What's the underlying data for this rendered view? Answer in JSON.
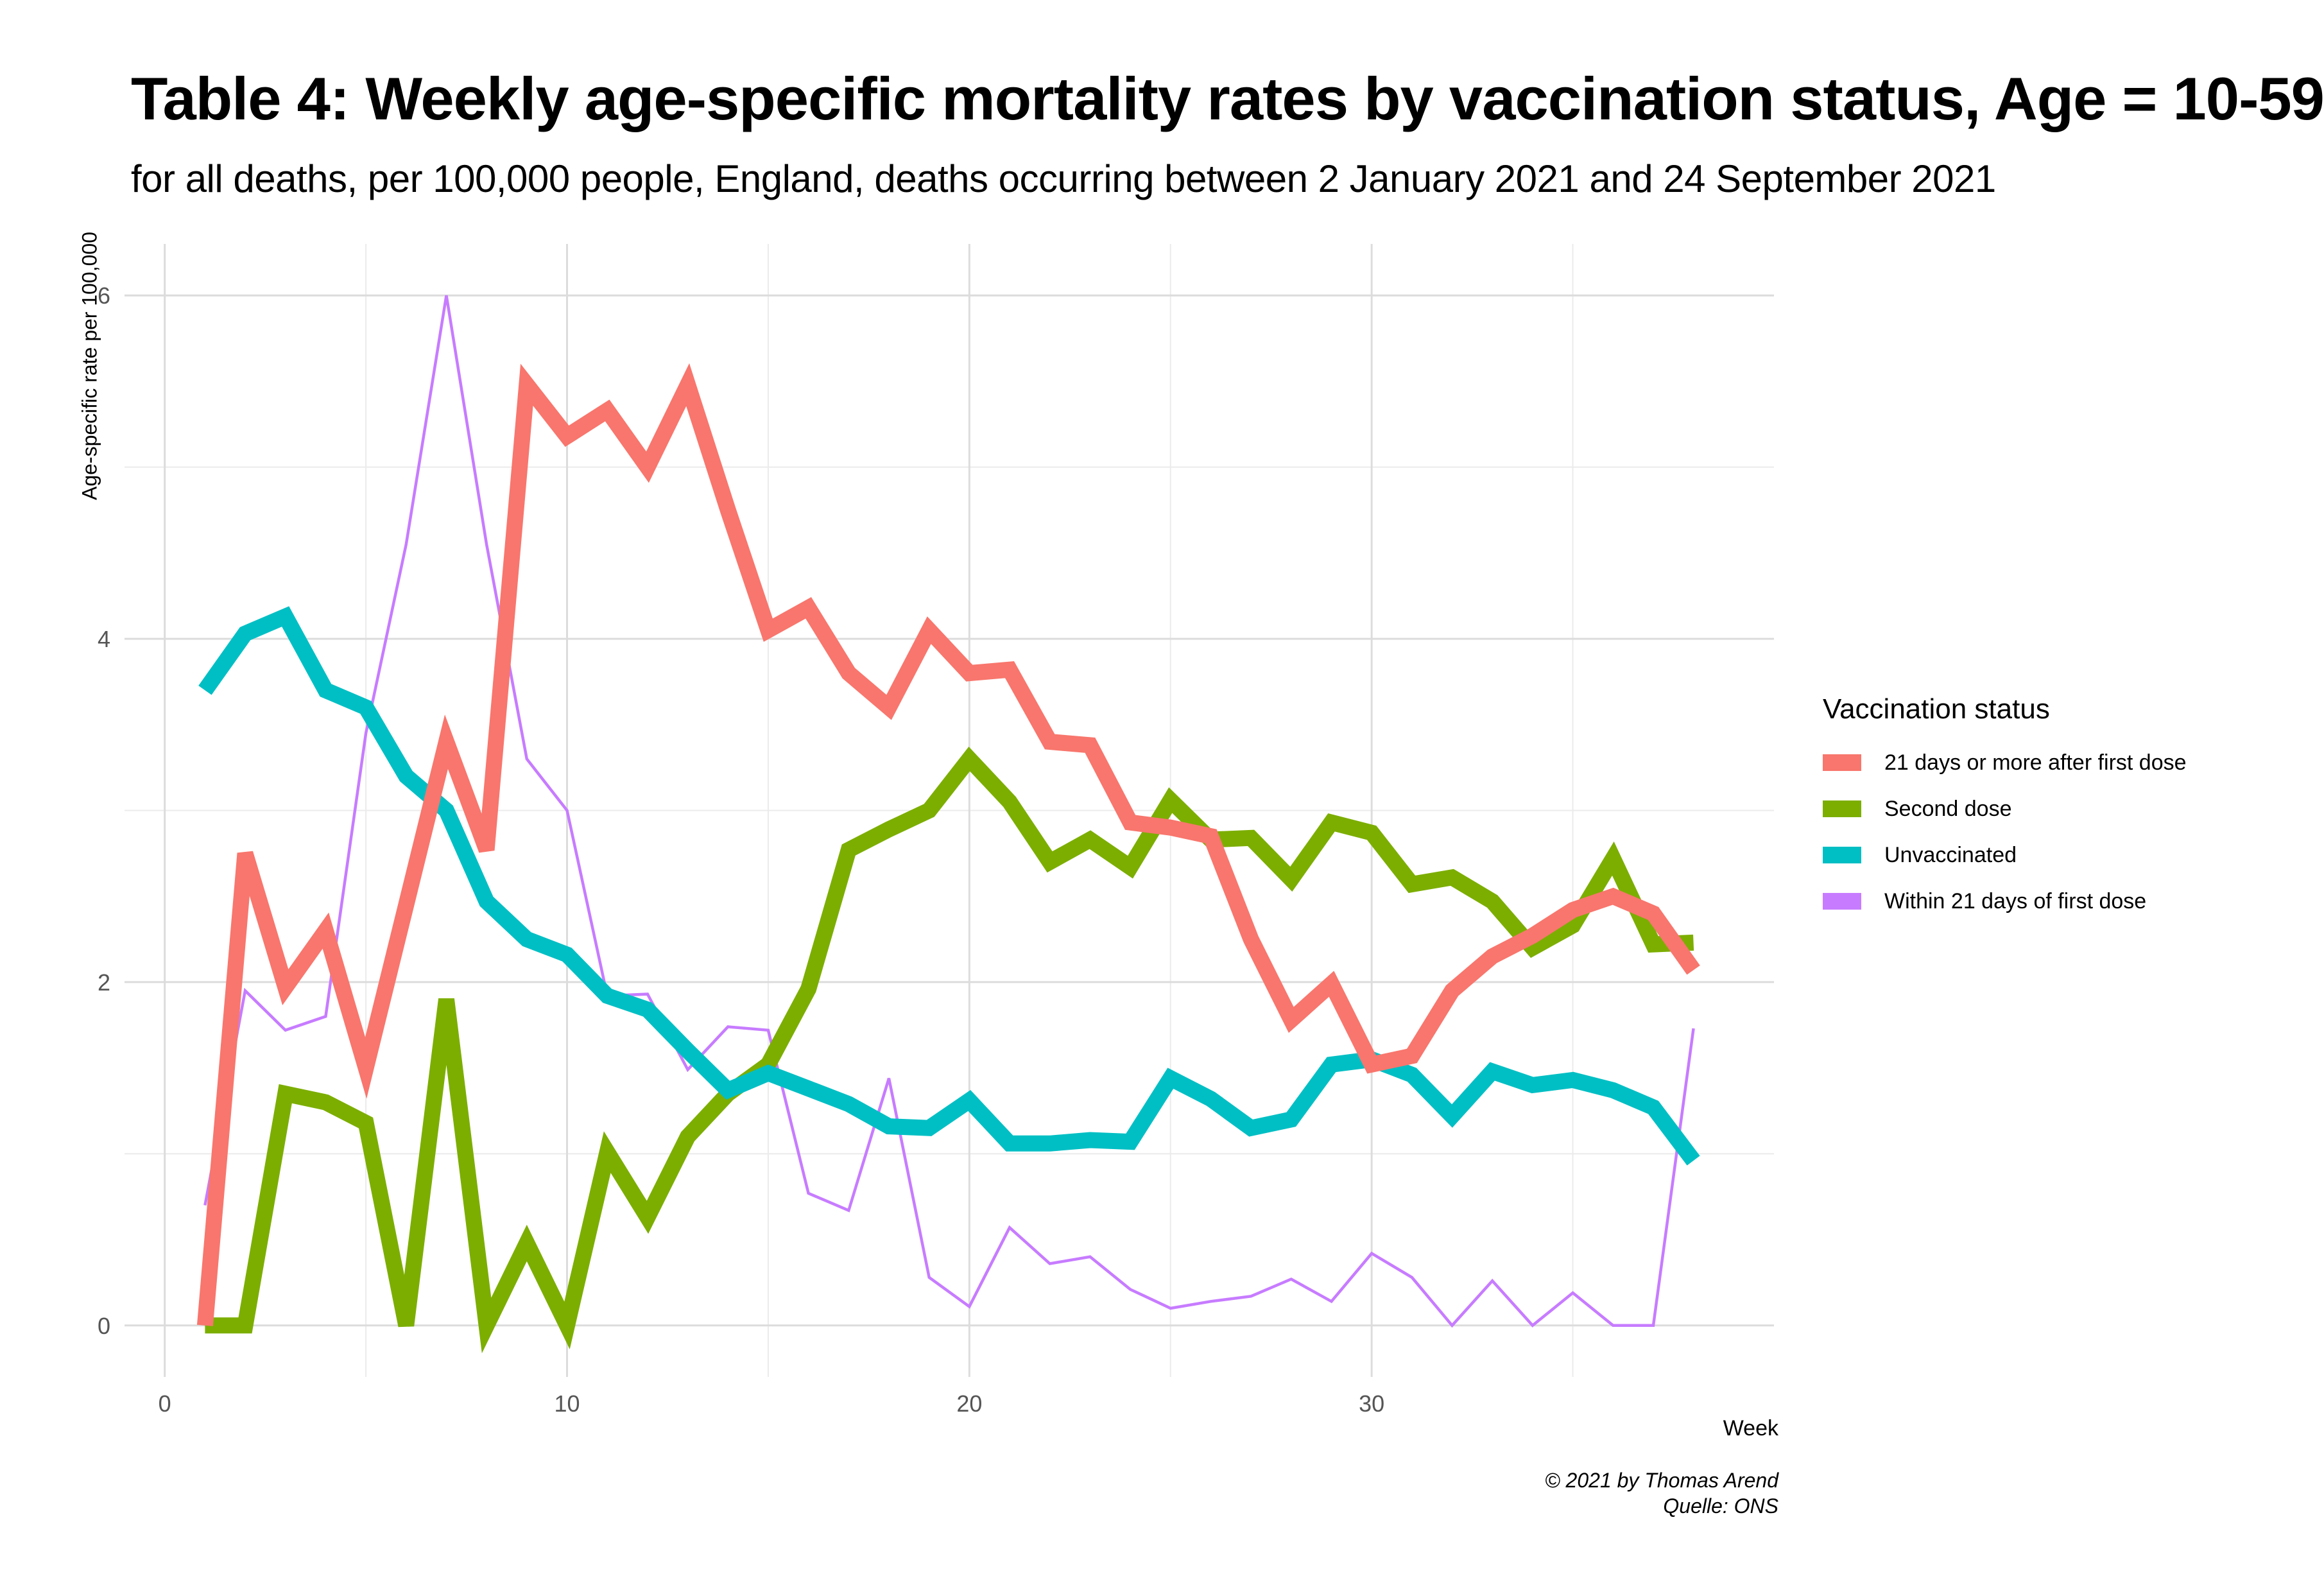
{
  "chart_data": {
    "type": "line",
    "title": "Table 4: Weekly age-specific mortality rates by vaccination status, Age = 10-59",
    "subtitle": "for all deaths, per 100,000 people, England, deaths occurring between 2 January 2021 and 24 September 2021",
    "xlabel": "Week",
    "ylabel": "Age-specific rate per 100,000",
    "xlim": [
      -1,
      40
    ],
    "ylim": [
      -0.3,
      6.3
    ],
    "x_ticks": [
      0,
      10,
      20,
      30
    ],
    "x_minor_ticks": [
      5,
      15,
      25,
      35
    ],
    "y_ticks": [
      0,
      2,
      4,
      6
    ],
    "y_minor_ticks": [
      1,
      3,
      5
    ],
    "grid": true,
    "legend_title": "Vaccination status",
    "legend_position": "right",
    "x": [
      1,
      2,
      3,
      4,
      5,
      6,
      7,
      8,
      9,
      10,
      11,
      12,
      13,
      14,
      15,
      16,
      17,
      18,
      19,
      20,
      21,
      22,
      23,
      24,
      25,
      26,
      27,
      28,
      29,
      30,
      31,
      32,
      33,
      34,
      35,
      36,
      37,
      38
    ],
    "series": [
      {
        "name": "21 days or more after first dose",
        "color": "#F8766D",
        "width": "thick",
        "values": [
          0,
          2.75,
          1.97,
          2.3,
          1.5,
          2.45,
          3.4,
          2.77,
          5.48,
          5.18,
          5.33,
          5.0,
          5.48,
          4.75,
          4.05,
          4.18,
          3.8,
          3.6,
          4.05,
          3.8,
          3.82,
          3.4,
          3.38,
          2.93,
          2.9,
          2.85,
          2.25,
          1.78,
          1.99,
          1.52,
          1.57,
          1.95,
          2.15,
          2.27,
          2.42,
          2.5,
          2.4,
          2.07
        ]
      },
      {
        "name": "Second dose",
        "color": "#7CAE00",
        "width": "thick",
        "values": [
          0,
          0,
          1.35,
          1.3,
          1.18,
          0,
          1.9,
          0,
          0.48,
          0,
          1.01,
          0.63,
          1.1,
          1.35,
          1.52,
          1.96,
          2.77,
          2.89,
          3.0,
          3.3,
          3.05,
          2.7,
          2.83,
          2.67,
          3.06,
          2.83,
          2.84,
          2.6,
          2.93,
          2.87,
          2.57,
          2.61,
          2.47,
          2.2,
          2.33,
          2.72,
          2.22,
          2.23
        ]
      },
      {
        "name": "Unvaccinated",
        "color": "#00BFC4",
        "width": "thick",
        "values": [
          3.7,
          4.03,
          4.13,
          3.7,
          3.6,
          3.2,
          3.0,
          2.47,
          2.25,
          2.16,
          1.92,
          1.84,
          1.6,
          1.37,
          1.47,
          1.38,
          1.29,
          1.16,
          1.15,
          1.31,
          1.06,
          1.06,
          1.08,
          1.07,
          1.44,
          1.32,
          1.15,
          1.2,
          1.52,
          1.55,
          1.46,
          1.22,
          1.48,
          1.4,
          1.43,
          1.37,
          1.27,
          0.96
        ]
      },
      {
        "name": "Within 21 days of first dose",
        "color": "#C77CFF",
        "width": "thin",
        "values": [
          0.7,
          1.95,
          1.72,
          1.8,
          3.45,
          4.55,
          6.0,
          4.55,
          3.3,
          3.0,
          1.92,
          1.93,
          1.49,
          1.74,
          1.72,
          0.77,
          0.67,
          1.44,
          0.28,
          0.11,
          0.57,
          0.36,
          0.4,
          0.21,
          0.1,
          0.14,
          0.17,
          0.27,
          0.14,
          0.42,
          0.28,
          0.0,
          0.26,
          0.0,
          0.19,
          0.0,
          0.0,
          1.73
        ]
      }
    ]
  },
  "caption": {
    "copyright": "© 2021 by Thomas Arend",
    "source": "Quelle: ONS"
  }
}
